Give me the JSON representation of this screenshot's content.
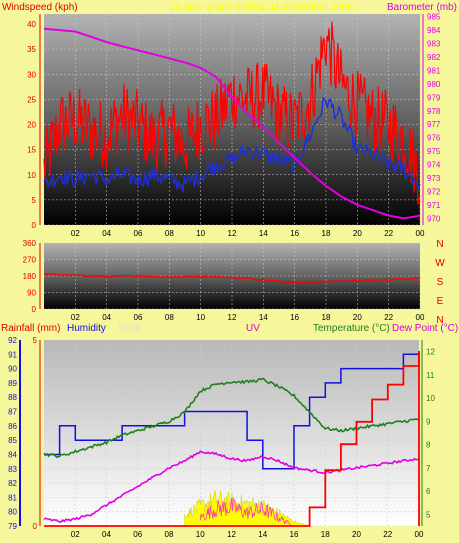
{
  "colors": {
    "background": "#f6f69a",
    "wind_avg": "#2030d0",
    "wind_gust": "#ff0000",
    "barometer": "#e000e0",
    "rain": "#ff0000",
    "humidity": "#1010e0",
    "solar": "#ffff00",
    "uv": "#e040e0",
    "temperature": "#208020",
    "dewpoint": "#e000e0",
    "plot_top": "#aaaaaa",
    "plot_bottom": "#000000",
    "grid": "#cccccc"
  },
  "chart_data": [
    {
      "id": "wind",
      "type": "line",
      "title": "24 hour graph ending 04 November 2009",
      "ylabel_left": "Windspeed (kph)",
      "ylabel_right": "Barometer (mb)",
      "x_ticks": [
        "02",
        "04",
        "06",
        "08",
        "10",
        "12",
        "14",
        "16",
        "18",
        "20",
        "22",
        "00"
      ],
      "ylim_left": [
        0,
        42
      ],
      "y_ticks_left": [
        "0",
        "5",
        "10",
        "15",
        "20",
        "25",
        "30",
        "35",
        "40"
      ],
      "ylim_right": [
        969.5,
        985.2
      ],
      "y_ticks_right": [
        "970",
        "971",
        "972",
        "973",
        "974",
        "975",
        "976",
        "977",
        "978",
        "979",
        "980",
        "981",
        "982",
        "983",
        "984",
        "985"
      ],
      "x_hours": [
        0,
        1,
        2,
        3,
        4,
        5,
        6,
        7,
        8,
        9,
        10,
        11,
        12,
        13,
        14,
        15,
        16,
        17,
        18,
        19,
        20,
        21,
        22,
        23,
        24
      ],
      "series": [
        {
          "key": "gust",
          "axis": "left",
          "values": [
            11,
            20,
            21,
            19,
            18,
            22,
            20,
            17,
            19,
            16,
            20,
            21,
            26,
            25,
            26,
            22,
            20,
            25,
            37,
            28,
            24,
            21,
            20,
            17,
            10
          ]
        },
        {
          "key": "avg",
          "axis": "left",
          "values": [
            8,
            10,
            9,
            10,
            9,
            10,
            9,
            10,
            9,
            8,
            10,
            12,
            13,
            15,
            14,
            13,
            12,
            18,
            25,
            21,
            15,
            14,
            12,
            11,
            8
          ]
        },
        {
          "key": "baro",
          "axis": "right",
          "values": [
            984.1,
            984.0,
            983.9,
            983.5,
            983.1,
            982.8,
            982.5,
            982.2,
            981.9,
            981.6,
            981.2,
            980.5,
            979.0,
            977.8,
            976.8,
            975.6,
            974.5,
            973.4,
            972.4,
            971.6,
            971.0,
            970.6,
            970.2,
            970.0,
            970.2
          ]
        }
      ]
    },
    {
      "id": "direction",
      "type": "line",
      "x_ticks": [
        "02",
        "04",
        "06",
        "08",
        "10",
        "12",
        "14",
        "16",
        "18",
        "20",
        "22",
        "00"
      ],
      "ylim": [
        0,
        360
      ],
      "y_ticks": [
        "0",
        "90",
        "180",
        "270",
        "360"
      ],
      "compass": [
        "N",
        "W",
        "S",
        "E",
        "N"
      ],
      "x_hours": [
        0,
        2,
        4,
        6,
        8,
        10,
        12,
        14,
        16,
        18,
        20,
        22,
        24
      ],
      "series": [
        {
          "key": "direction",
          "values": [
            190,
            183,
            178,
            180,
            175,
            178,
            172,
            160,
            145,
            150,
            155,
            160,
            170
          ]
        }
      ]
    },
    {
      "id": "climate",
      "type": "line",
      "legend": [
        "Rainfall (mm)",
        "Humidity",
        "Solar",
        "UV",
        "Temperature (°C)",
        "Dew Point (°C)"
      ],
      "x_ticks": [
        "02",
        "04",
        "06",
        "08",
        "10",
        "12",
        "14",
        "16",
        "18",
        "20",
        "22",
        "00"
      ],
      "ylim_humidity": [
        79,
        92
      ],
      "y_ticks_humidity": [
        "79",
        "80",
        "81",
        "82",
        "83",
        "84",
        "85",
        "86",
        "87",
        "88",
        "89",
        "90",
        "91",
        "92"
      ],
      "ylim_temp": [
        4.5,
        12.5
      ],
      "y_ticks_temp": [
        "5",
        "6",
        "7",
        "8",
        "9",
        "10",
        "11",
        "12"
      ],
      "rain_axis_labels": [
        "0",
        "5"
      ],
      "x_hours": [
        0,
        1,
        2,
        3,
        4,
        5,
        6,
        7,
        8,
        9,
        10,
        11,
        12,
        13,
        14,
        15,
        16,
        17,
        18,
        19,
        20,
        21,
        22,
        23,
        24
      ],
      "series": [
        {
          "key": "humidity",
          "values": [
            84,
            86,
            85,
            85,
            85,
            86,
            86,
            86,
            86,
            87,
            87,
            87,
            87,
            85,
            83,
            83,
            86,
            88,
            89,
            90,
            90,
            90,
            90,
            91,
            91
          ]
        },
        {
          "key": "temperature",
          "values": [
            7.6,
            7.5,
            7.7,
            7.9,
            8.1,
            8.4,
            8.6,
            8.8,
            9.0,
            9.4,
            10.3,
            10.6,
            10.7,
            10.7,
            10.8,
            10.5,
            10.1,
            9.4,
            8.7,
            8.6,
            8.7,
            8.8,
            8.9,
            9.0,
            9.1
          ]
        },
        {
          "key": "dewpoint",
          "values": [
            4.8,
            4.7,
            4.8,
            5.0,
            5.4,
            5.8,
            6.2,
            6.6,
            7.0,
            7.3,
            7.7,
            7.6,
            7.4,
            7.3,
            7.5,
            7.3,
            7.0,
            6.9,
            6.8,
            6.9,
            7.0,
            7.1,
            7.2,
            7.3,
            7.4
          ]
        },
        {
          "key": "rain_cum",
          "values": [
            0,
            0,
            0,
            0,
            0,
            0,
            0,
            0,
            0,
            0,
            0,
            0,
            0,
            0,
            0,
            0,
            0,
            0.5,
            1.5,
            2.2,
            2.8,
            3.4,
            3.8,
            4.3,
            4.7
          ]
        },
        {
          "key": "solar",
          "values": [
            0,
            0,
            0,
            0,
            0,
            0,
            0,
            0,
            0,
            0.5,
            0.9,
            1.2,
            1.1,
            1.0,
            0.9,
            0.6,
            0.2,
            0,
            0,
            0,
            0,
            0,
            0,
            0,
            0
          ]
        },
        {
          "key": "uv",
          "values": [
            0,
            0,
            0,
            0,
            0,
            0,
            0,
            0,
            0,
            0,
            0.4,
            0.8,
            0.9,
            0.6,
            0.8,
            0.4,
            0,
            0,
            0,
            0,
            0,
            0,
            0,
            0,
            0
          ]
        }
      ]
    }
  ]
}
